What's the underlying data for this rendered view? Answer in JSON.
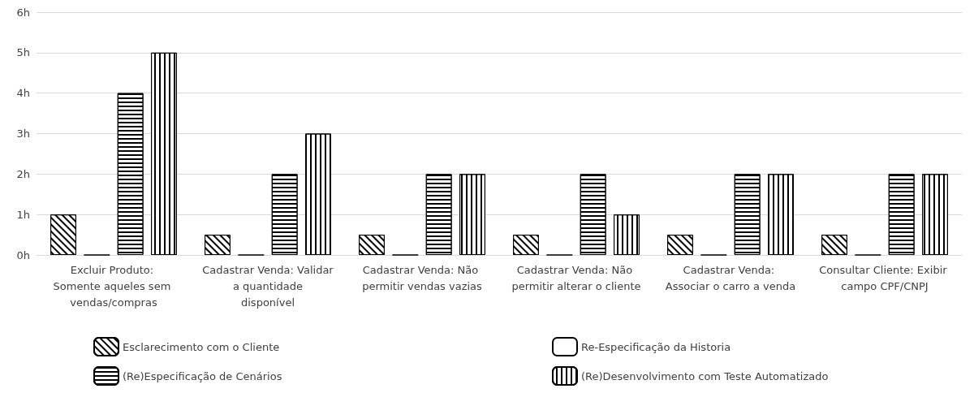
{
  "chart_data": {
    "type": "bar",
    "categories": [
      "Excluir Produto: Somente aqueles sem vendas/compras",
      "Cadastrar Venda: Validar a quantidade disponível",
      "Cadastrar Venda: Não permitir vendas vazias",
      "Cadastrar Venda: Não permitir alterar o cliente",
      "Cadastrar Venda: Associar o carro a venda",
      "Consultar Cliente: Exibir campo CPF/CNPJ"
    ],
    "series": [
      {
        "name": "Esclarecimento com o Cliente",
        "color": "#000000",
        "values": [
          1,
          0.5,
          0.5,
          0.5,
          0.5,
          0.5
        ]
      },
      {
        "name": "Re-Especificação da Historia",
        "color": "#000000",
        "values": [
          0,
          0,
          0,
          0,
          0,
          0
        ]
      },
      {
        "name": "(Re)Especificação de Cenários",
        "color": "#000000",
        "values": [
          4,
          2,
          2,
          2,
          2,
          2
        ]
      },
      {
        "name": "(Re)Desenvolvimento com Teste Automatizado",
        "color": "#000000",
        "values": [
          5,
          3,
          2,
          1,
          2,
          2
        ]
      }
    ],
    "ylim": [
      0,
      6
    ],
    "yticks": [
      {
        "value": 0,
        "label": "0h"
      },
      {
        "value": 1,
        "label": "1h"
      },
      {
        "value": 2,
        "label": "2h"
      },
      {
        "value": 3,
        "label": "3h"
      },
      {
        "value": 4,
        "label": "4h"
      },
      {
        "value": 5,
        "label": "5h"
      },
      {
        "value": 6,
        "label": "6h"
      }
    ],
    "grid": "y",
    "legend": "bottom"
  }
}
